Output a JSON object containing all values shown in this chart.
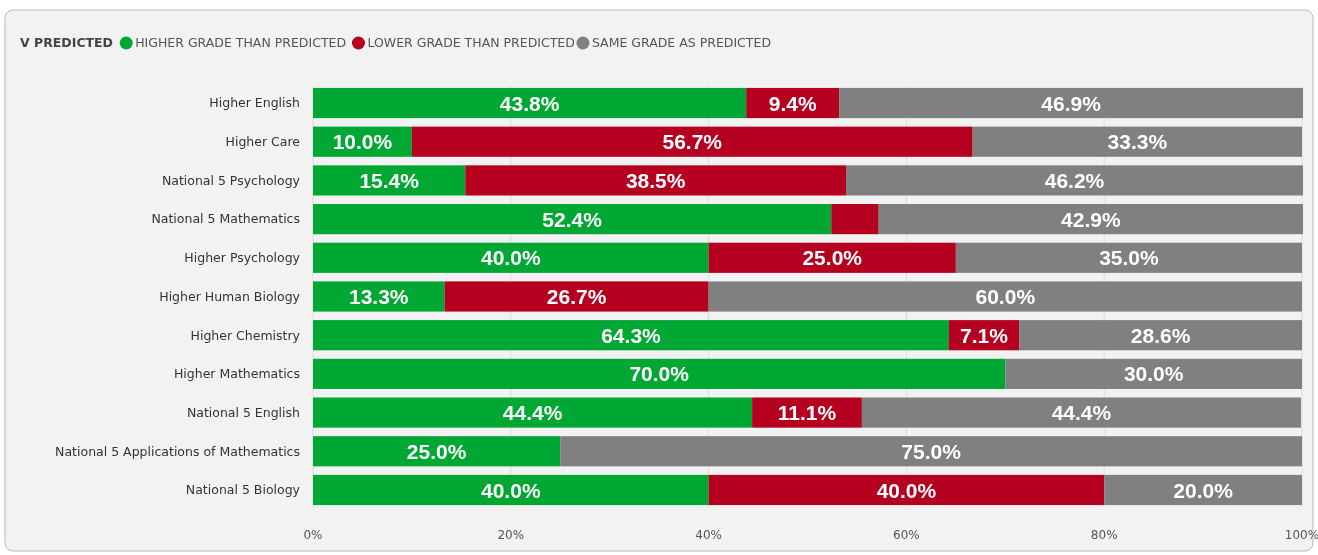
{
  "chart_data": {
    "type": "bar",
    "orientation": "horizontal",
    "stacked": true,
    "legend": "top left",
    "legend_title": "V PREDICTED",
    "grid": "x",
    "categories": [
      "Higher English",
      "Higher Care",
      "National 5 Psychology",
      "National 5 Mathematics",
      "Higher Psychology",
      "Higher Human Biology",
      "Higher Chemistry",
      "Higher Mathematics",
      "National 5 English",
      "National 5 Applications of Mathematics",
      "National 5 Biology"
    ],
    "xlim": [
      0,
      100
    ],
    "xticks": [
      {
        "value": 0,
        "label": "0%"
      },
      {
        "value": 20,
        "label": "20%"
      },
      {
        "value": 40,
        "label": "40%"
      },
      {
        "value": 60,
        "label": "60%"
      },
      {
        "value": 80,
        "label": "80%"
      },
      {
        "value": 100,
        "label": "100%"
      }
    ],
    "series": [
      {
        "name": "HIGHER GRADE THAN PREDICTED",
        "color": "#00a833",
        "values": [
          43.8,
          10.0,
          15.4,
          52.4,
          40.0,
          13.3,
          64.3,
          70.0,
          44.4,
          25.0,
          40.0
        ],
        "value_labels": [
          "43.8%",
          "10.0%",
          "15.4%",
          "52.4%",
          "40.0%",
          "13.3%",
          "64.3%",
          "70.0%",
          "44.4%",
          "25.0%",
          "40.0%"
        ]
      },
      {
        "name": "LOWER GRADE THAN PREDICTED",
        "color": "#b5001f",
        "values": [
          9.4,
          56.7,
          38.5,
          4.8,
          25.0,
          26.7,
          7.1,
          0,
          11.1,
          0,
          40.0
        ],
        "value_labels": [
          "9.4%",
          "56.7%",
          "38.5%",
          null,
          "25.0%",
          "26.7%",
          "7.1%",
          null,
          "11.1%",
          null,
          "40.0%"
        ]
      },
      {
        "name": "SAME GRADE AS PREDICTED",
        "color": "#808080",
        "values": [
          46.9,
          33.3,
          46.2,
          42.9,
          35.0,
          60.0,
          28.6,
          30.0,
          44.4,
          75.0,
          20.0
        ],
        "value_labels": [
          "46.9%",
          "33.3%",
          "46.2%",
          "42.9%",
          "35.0%",
          "60.0%",
          "28.6%",
          "30.0%",
          "44.4%",
          "75.0%",
          "20.0%"
        ]
      }
    ]
  }
}
